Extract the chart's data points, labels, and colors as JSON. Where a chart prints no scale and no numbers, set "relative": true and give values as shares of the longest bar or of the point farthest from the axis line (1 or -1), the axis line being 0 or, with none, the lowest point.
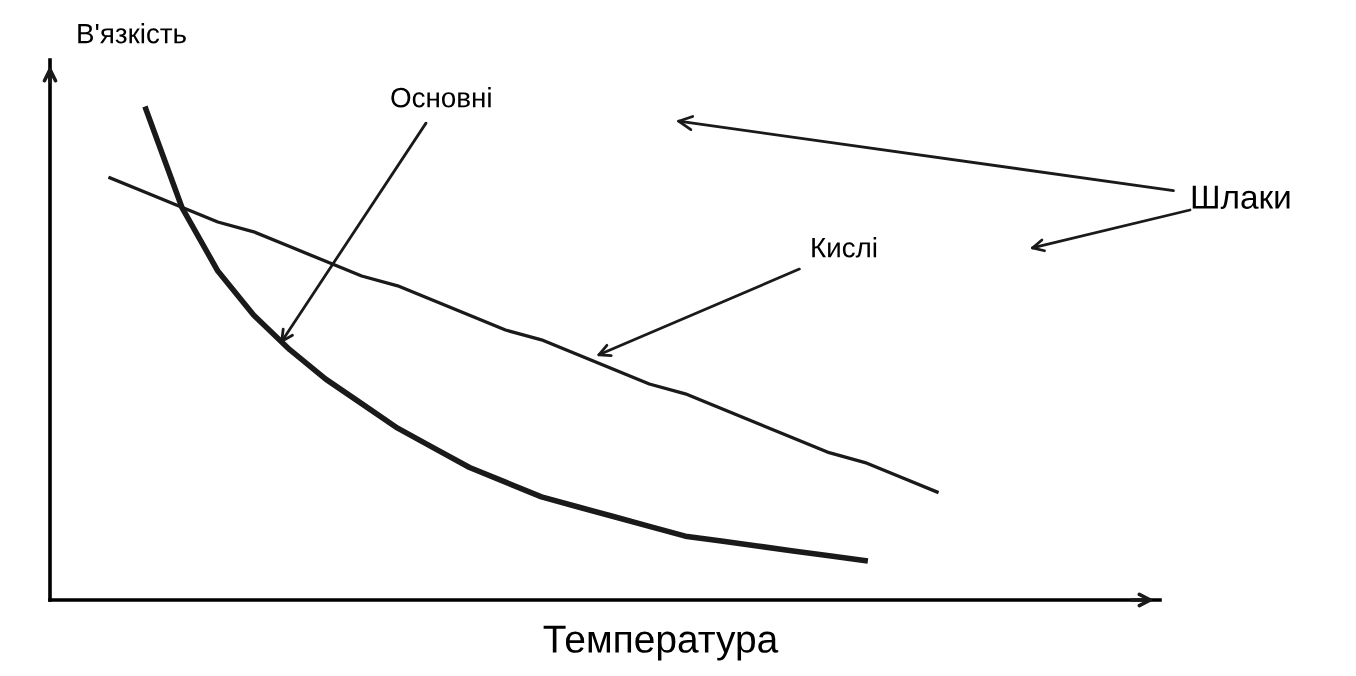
{
  "chart_data": {
    "type": "line",
    "relative": true,
    "xlabel": "Температура",
    "ylabel": "В'язкість",
    "categories": [
      null,
      null,
      null,
      null,
      null,
      null,
      null,
      null,
      null,
      null,
      null,
      null,
      null,
      null,
      null,
      null,
      null,
      null,
      null,
      null,
      null,
      null,
      null,
      null,
      null
    ],
    "series": [
      {
        "color": "#1a1a1a",
        "values": [
          null,
          1.0,
          0.8,
          0.67,
          0.58,
          0.51,
          0.45,
          0.4,
          0.35,
          0.31,
          0.27,
          0.24,
          0.21,
          0.19,
          0.17,
          0.15,
          0.13,
          0.12,
          0.11,
          0.1,
          0.09,
          0.08,
          null,
          null,
          null
        ]
      },
      {
        "color": "#1a1a1a",
        "values": [
          0.86,
          0.83,
          0.8,
          0.77,
          0.75,
          0.72,
          0.69,
          0.66,
          0.64,
          0.61,
          0.58,
          0.55,
          0.53,
          0.5,
          0.47,
          0.44,
          0.42,
          0.39,
          0.36,
          0.33,
          0.3,
          0.28,
          0.25,
          0.22,
          null
        ]
      }
    ],
    "annotations": [
      "Основні",
      "Кислі",
      "Шлаки"
    ],
    "grid": false,
    "legend": false,
    "marker": "none",
    "line_style": "solid"
  }
}
